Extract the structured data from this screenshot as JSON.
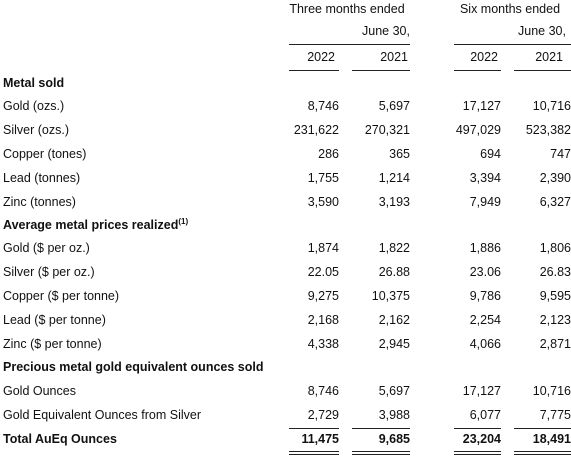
{
  "header": {
    "three_months_l1": "Three months ended",
    "three_months_l2": "June 30,",
    "six_months_l1": "Six months ended",
    "six_months_l2": "June 30,",
    "years": [
      "2022",
      "2021",
      "2022",
      "2021"
    ]
  },
  "sections": {
    "metal_sold": "Metal sold",
    "avg_prices": "Average metal prices realized",
    "avg_prices_sup": "(1)",
    "precious": "Precious metal gold equivalent ounces sold"
  },
  "rows": [
    {
      "label": "Gold (ozs.)",
      "values": [
        "8,746",
        "5,697",
        "17,127",
        "10,716"
      ]
    },
    {
      "label": "Silver (ozs.)",
      "values": [
        "231,622",
        "270,321",
        "497,029",
        "523,382"
      ]
    },
    {
      "label": "Copper (tones)",
      "values": [
        "286",
        "365",
        "694",
        "747"
      ]
    },
    {
      "label": "Lead (tonnes)",
      "values": [
        "1,755",
        "1,214",
        "3,394",
        "2,390"
      ]
    },
    {
      "label": "Zinc (tonnes)",
      "values": [
        "3,590",
        "3,193",
        "7,949",
        "6,327"
      ]
    },
    {
      "label": "Gold ($ per oz.)",
      "values": [
        "1,874",
        "1,822",
        "1,886",
        "1,806"
      ]
    },
    {
      "label": "Silver ($ per oz.)",
      "values": [
        "22.05",
        "26.88",
        "23.06",
        "26.83"
      ]
    },
    {
      "label": "Copper ($ per tonne)",
      "values": [
        "9,275",
        "10,375",
        "9,786",
        "9,595"
      ]
    },
    {
      "label": "Lead ($ per tonne)",
      "values": [
        "2,168",
        "2,162",
        "2,254",
        "2,123"
      ]
    },
    {
      "label": "Zinc ($ per tonne)",
      "values": [
        "4,338",
        "2,945",
        "4,066",
        "2,871"
      ]
    },
    {
      "label": "Gold Ounces",
      "values": [
        "8,746",
        "5,697",
        "17,127",
        "10,716"
      ]
    },
    {
      "label": "Gold Equivalent Ounces from Silver",
      "values": [
        "2,729",
        "3,988",
        "6,077",
        "7,775"
      ]
    }
  ],
  "total": {
    "label": "Total AuEq Ounces",
    "values": [
      "11,475",
      "9,685",
      "23,204",
      "18,491"
    ]
  }
}
